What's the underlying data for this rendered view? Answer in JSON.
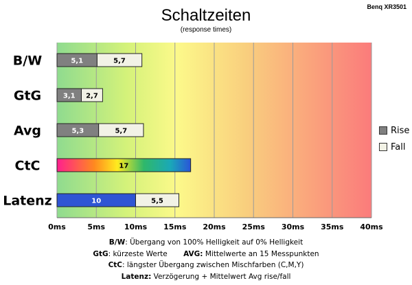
{
  "chart_data": {
    "type": "bar",
    "orientation": "horizontal",
    "stacked": true,
    "title": "Schaltzeiten",
    "subtitle": "(response times)",
    "model": "Benq XR3501",
    "categories": [
      "B/W",
      "GtG",
      "Avg",
      "CtC",
      "Latenz"
    ],
    "series": [
      {
        "name": "Rise",
        "color": "#808080",
        "values": [
          5.1,
          3.1,
          5.3,
          null,
          null
        ]
      },
      {
        "name": "Fall",
        "color": "#f2f2e6",
        "values": [
          5.7,
          2.7,
          5.7,
          null,
          5.5
        ]
      }
    ],
    "single_bars": [
      {
        "category": "CtC",
        "value": 17,
        "label": "17",
        "fill": "rainbow-gradient"
      },
      {
        "category": "Latenz",
        "value": 10,
        "label": "10",
        "fill": "#2f55d4"
      }
    ],
    "data_labels": {
      "B/W": [
        "5,1",
        "5,7"
      ],
      "GtG": [
        "3,1",
        "2,7"
      ],
      "Avg": [
        "5,3",
        "5,7"
      ],
      "CtC": [
        "17"
      ],
      "Latenz": [
        "10",
        "5,5"
      ]
    },
    "xlim": [
      0,
      40
    ],
    "xticks": [
      "0ms",
      "5ms",
      "10ms",
      "15ms",
      "20ms",
      "25ms",
      "30ms",
      "35ms",
      "40ms"
    ],
    "grid": true,
    "background": "gradient green-yellow-red",
    "legend": "right"
  },
  "footnotes": {
    "line1_key": "B/W",
    "line1_text": ":  Übergang von 100% Helligkeit auf 0% Helligkeit",
    "line2a_key": "GtG",
    "line2a_text": ": kürzeste  Werte",
    "line2b_key": "AVG:",
    "line2b_text": " Mittelwerte  an 15 Messpunkten",
    "line3_key": "CtC",
    "line3_text": ": längster Übergang  zwischen Mischfarben  (C,M,Y)",
    "line4_key": "Latenz:",
    "line4_text": " Verzögerung  + Mittelwert Avg rise/fall"
  }
}
